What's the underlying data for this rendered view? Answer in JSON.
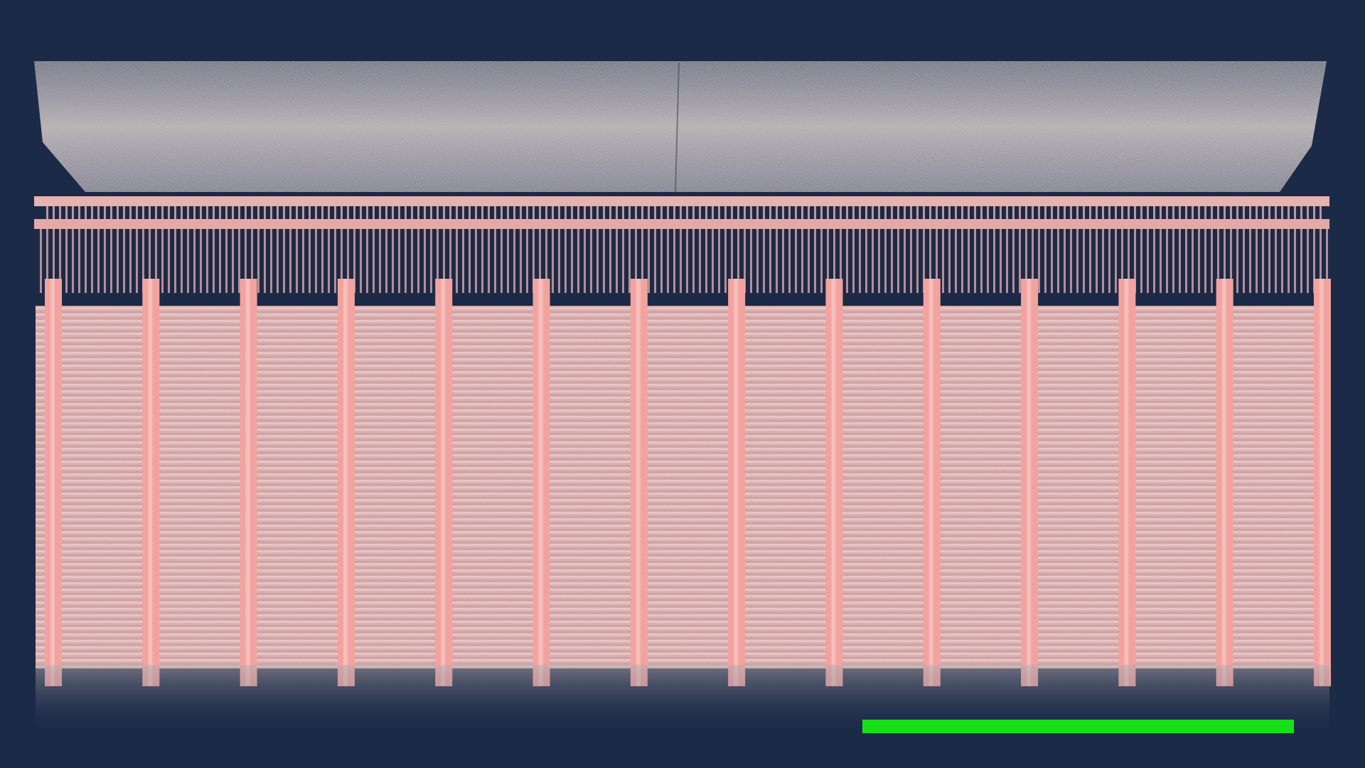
{
  "scene": {
    "background_color": "#1b2a47",
    "haze_color": "#c9c0bd",
    "structure_color": "#f2a3a0",
    "structure_highlight": "#f7c9c6",
    "panel_count": 14
  },
  "caption": {
    "text": "",
    "bar_color": "#18e018"
  }
}
